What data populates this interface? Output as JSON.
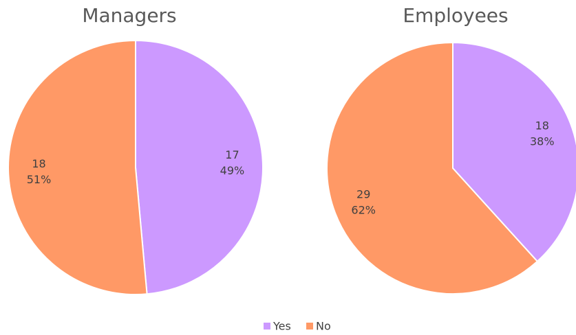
{
  "chart_data": [
    {
      "type": "pie",
      "title": "Managers",
      "categories": [
        "Yes",
        "No"
      ],
      "values": [
        17,
        18
      ],
      "percent_labels": [
        "49%",
        "51%"
      ],
      "colors": [
        "#cc99ff",
        "#ff9966"
      ],
      "legend": "bottom"
    },
    {
      "type": "pie",
      "title": "Employees",
      "categories": [
        "Yes",
        "No"
      ],
      "values": [
        18,
        29
      ],
      "percent_labels": [
        "38%",
        "62%"
      ],
      "colors": [
        "#cc99ff",
        "#ff9966"
      ],
      "legend": "bottom"
    }
  ]
}
